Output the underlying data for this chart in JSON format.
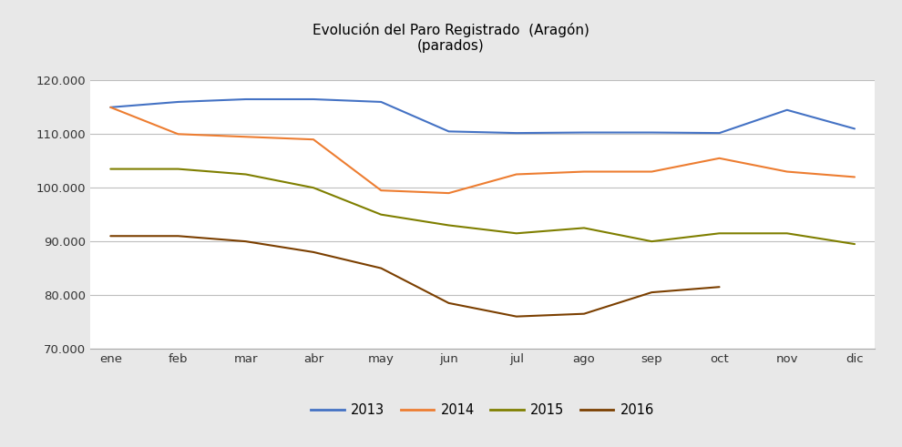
{
  "title_line1": "Evolución del Paro Registrado  (Aragón)",
  "title_line2": "(parados)",
  "months": [
    "ene",
    "feb",
    "mar",
    "abr",
    "may",
    "jun",
    "jul",
    "ago",
    "sep",
    "oct",
    "nov",
    "dic"
  ],
  "series": {
    "2013": [
      115000,
      116000,
      116500,
      116500,
      116000,
      110500,
      110200,
      110300,
      110300,
      110200,
      114500,
      111000
    ],
    "2014": [
      115000,
      110000,
      109500,
      109000,
      99500,
      99000,
      102500,
      103000,
      103000,
      105500,
      103000,
      102000
    ],
    "2015": [
      103500,
      103500,
      102500,
      100000,
      95000,
      93000,
      91500,
      92500,
      90000,
      91500,
      91500,
      89500
    ],
    "2016": [
      91000,
      91000,
      90000,
      88000,
      85000,
      78500,
      76000,
      76500,
      80500,
      81500,
      null,
      null
    ]
  },
  "colors": {
    "2013": "#4472C4",
    "2014": "#ED7D31",
    "2015": "#7F7F00",
    "2016": "#7B3F00"
  },
  "ylim": [
    70000,
    120000
  ],
  "yticks": [
    70000,
    80000,
    90000,
    100000,
    110000,
    120000
  ],
  "ytick_labels": [
    "70.000",
    "80.000",
    "90.000",
    "100.000",
    "110.000",
    "120.000"
  ],
  "legend_order": [
    "2013",
    "2014",
    "2015",
    "2016"
  ],
  "outer_bg": "#E8E8E8",
  "plot_bg": "#FFFFFF",
  "grid_color": "#BEBEBE",
  "spine_color": "#AAAAAA"
}
